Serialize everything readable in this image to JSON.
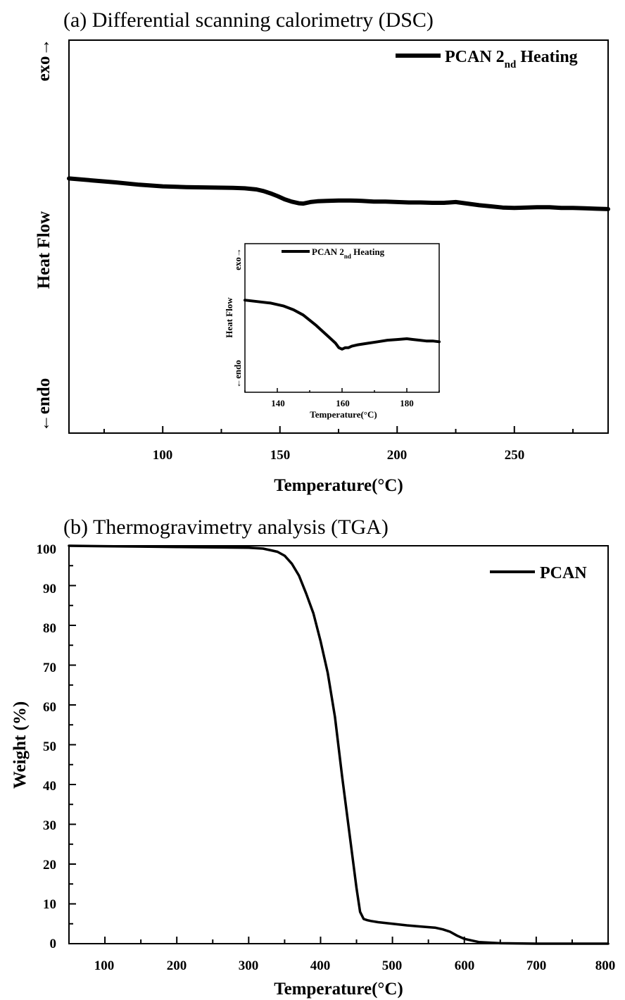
{
  "chart_data": [
    {
      "type": "line",
      "title": "(a) Differential scanning calorimetry (DSC)",
      "xlabel": "Temperature(°C)",
      "ylabel": "Heat Flow",
      "y_top_label": "exo→",
      "y_bottom_label": "←endo",
      "xlim": [
        60,
        290
      ],
      "ylim": [
        0,
        1
      ],
      "x_ticks": [
        100,
        150,
        200,
        250
      ],
      "y_ticks_shown": false,
      "legend": {
        "placement": "top-right",
        "label_main": "PCAN 2",
        "label_sub": "nd",
        "label_tail": " Heating"
      },
      "series": [
        {
          "name": "PCAN 2nd Heating",
          "x": [
            60,
            70,
            80,
            90,
            100,
            110,
            120,
            130,
            135,
            140,
            143,
            146,
            149,
            152,
            155,
            158,
            160,
            163,
            166,
            170,
            175,
            180,
            185,
            190,
            195,
            200,
            205,
            210,
            215,
            220,
            225,
            230,
            235,
            240,
            245,
            250,
            255,
            260,
            265,
            270,
            275,
            280,
            285,
            290
          ],
          "y": [
            0.648,
            0.643,
            0.638,
            0.632,
            0.628,
            0.626,
            0.625,
            0.624,
            0.623,
            0.62,
            0.616,
            0.61,
            0.603,
            0.595,
            0.589,
            0.585,
            0.584,
            0.588,
            0.59,
            0.591,
            0.592,
            0.592,
            0.591,
            0.589,
            0.589,
            0.588,
            0.587,
            0.587,
            0.586,
            0.586,
            0.588,
            0.584,
            0.58,
            0.577,
            0.574,
            0.573,
            0.574,
            0.575,
            0.575,
            0.573,
            0.573,
            0.572,
            0.571,
            0.57
          ]
        }
      ],
      "inset": {
        "type": "line",
        "xlabel": "Temperature(°C)",
        "ylabel": "Heat Flow",
        "y_top_label": "exo→",
        "y_bottom_label": "←endo",
        "xlim": [
          130,
          190
        ],
        "ylim": [
          0,
          1
        ],
        "x_ticks": [
          140,
          160,
          180
        ],
        "legend": {
          "placement": "top-left",
          "label_main": "PCAN 2",
          "label_sub": "nd",
          "label_tail": " Heating"
        },
        "series": [
          {
            "name": "PCAN 2nd Heating",
            "x": [
              130,
              134,
              138,
              142,
              145,
              148,
              150,
              152,
              154,
              156,
              158,
              159,
              160,
              161,
              162,
              163,
              165,
              168,
              171,
              174,
              177,
              180,
              182,
              184,
              186,
              188,
              190
            ],
            "y": [
              0.62,
              0.61,
              0.6,
              0.58,
              0.555,
              0.52,
              0.485,
              0.45,
              0.41,
              0.37,
              0.33,
              0.3,
              0.29,
              0.3,
              0.3,
              0.31,
              0.32,
              0.33,
              0.34,
              0.35,
              0.355,
              0.36,
              0.355,
              0.35,
              0.345,
              0.345,
              0.34
            ]
          }
        ]
      }
    },
    {
      "type": "line",
      "title": "(b) Thermogravimetry analysis (TGA)",
      "xlabel": "Temperature(°C)",
      "ylabel": "Weight (%)",
      "xlim": [
        50,
        800
      ],
      "ylim": [
        0,
        100
      ],
      "x_ticks": [
        100,
        200,
        300,
        400,
        500,
        600,
        700,
        800
      ],
      "y_ticks": [
        0,
        10,
        20,
        30,
        40,
        50,
        60,
        70,
        80,
        90,
        100
      ],
      "legend": {
        "placement": "top-right",
        "label": "PCAN"
      },
      "series": [
        {
          "name": "PCAN",
          "x": [
            50,
            100,
            150,
            200,
            250,
            300,
            320,
            340,
            350,
            360,
            370,
            380,
            390,
            400,
            410,
            420,
            430,
            440,
            445,
            450,
            455,
            460,
            465,
            470,
            480,
            500,
            520,
            540,
            560,
            570,
            580,
            590,
            600,
            620,
            650,
            700,
            750,
            800
          ],
          "y": [
            100,
            99.9,
            99.8,
            99.7,
            99.6,
            99.5,
            99.3,
            98.5,
            97.5,
            95.5,
            92.5,
            88,
            83,
            76,
            68,
            57,
            42,
            28,
            21,
            14,
            8,
            6.2,
            5.9,
            5.7,
            5.4,
            5.0,
            4.6,
            4.3,
            4.0,
            3.6,
            3.0,
            2.0,
            1.2,
            0.4,
            0.1,
            0.0,
            0.0,
            0.0
          ]
        }
      ]
    }
  ]
}
